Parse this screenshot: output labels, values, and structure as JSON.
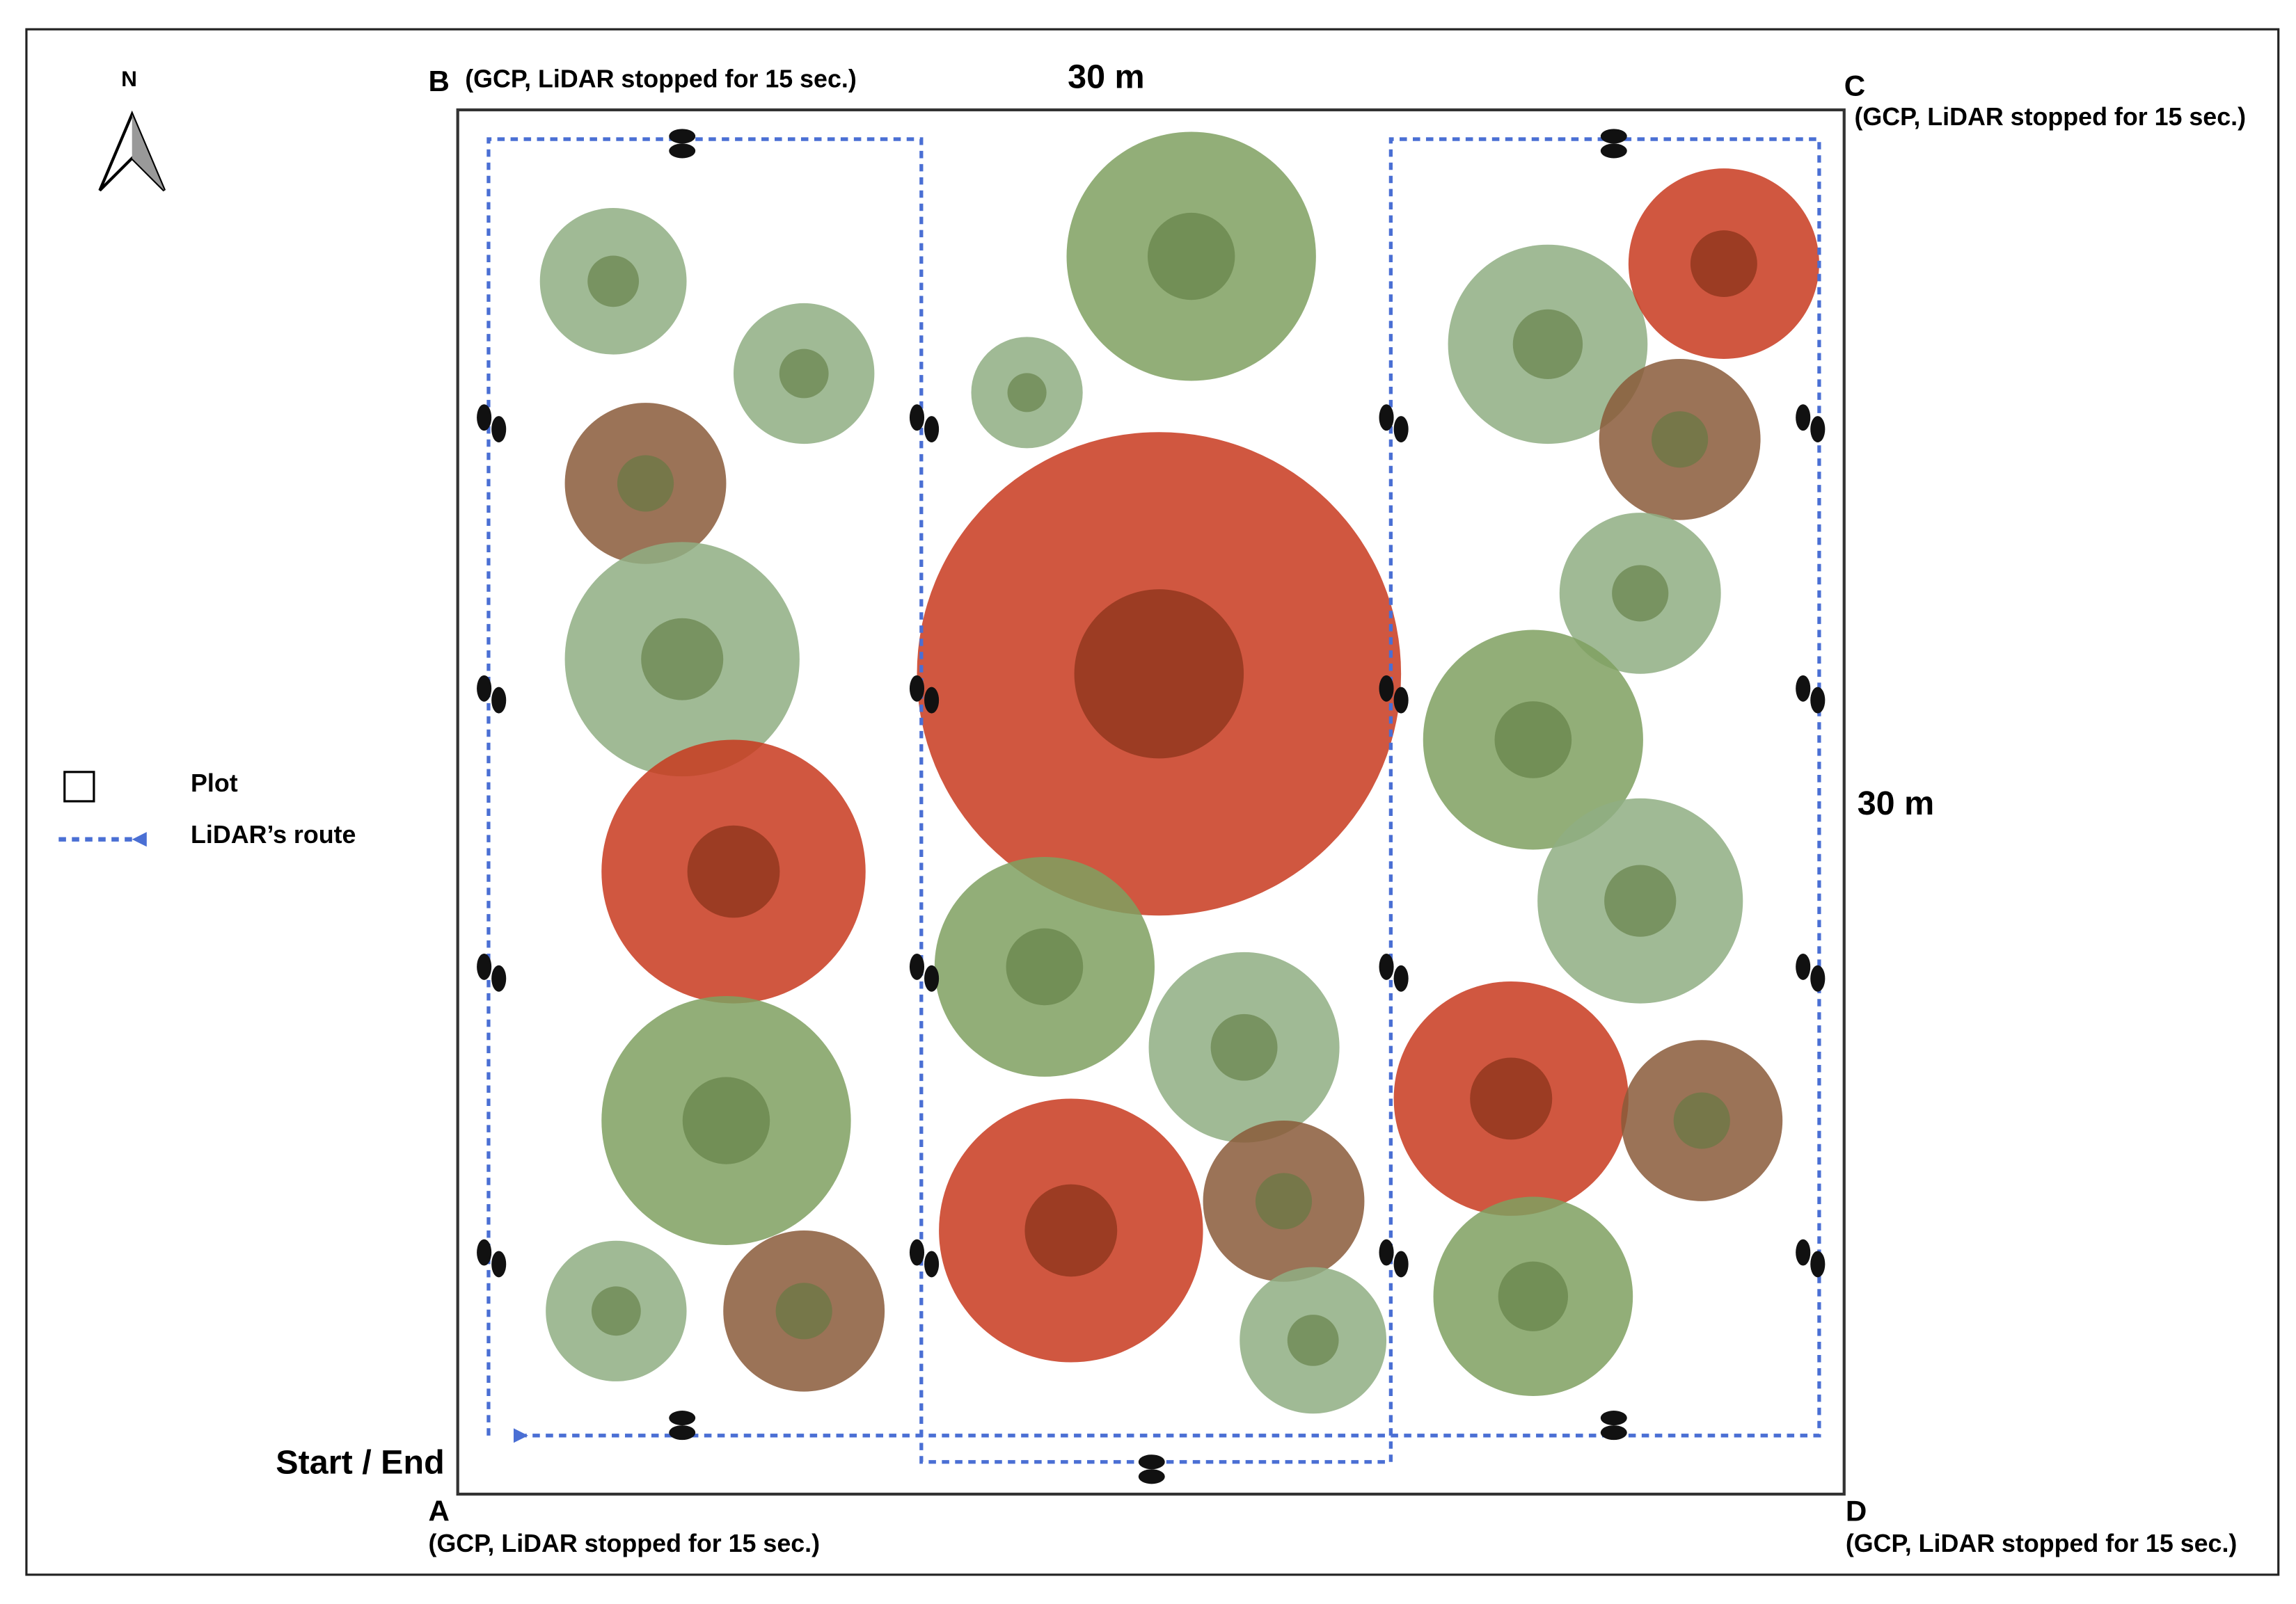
{
  "north": "N",
  "legend": {
    "items": [
      "Plot",
      "LiDAR’s route"
    ]
  },
  "corners": [
    {
      "label": "B",
      "note": "(GCP, LiDAR stopped for 15 sec.)"
    },
    {
      "label": "C",
      "note": "(GCP, LiDAR stopped for 15 sec.)"
    },
    {
      "label": "A",
      "note": "(GCP, LiDAR stopped for 15 sec.)"
    },
    {
      "label": "D",
      "note": "(GCP, LiDAR stopped for 15 sec.)"
    }
  ],
  "dimensions": {
    "top": "30 m",
    "right": "30 m"
  },
  "start_end": "Start / End"
}
